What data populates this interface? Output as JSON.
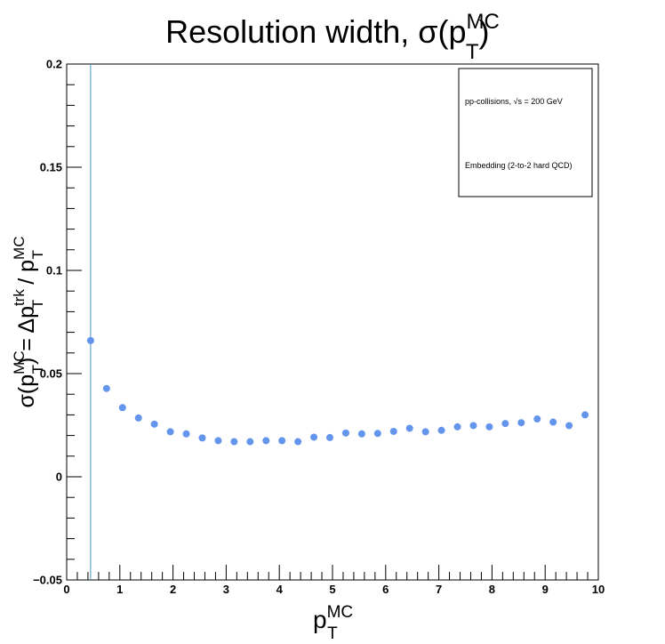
{
  "chart_data": {
    "type": "scatter",
    "title": {
      "base": "Resolution width, σ(p",
      "sub": "T",
      "sup": "MC",
      "tail": ")"
    },
    "xlabel": {
      "base": "p",
      "sub": "T",
      "sup": "MC"
    },
    "ylabel": {
      "p1": "σ(p",
      "p1_sub": "T",
      "p1_sup": "MC",
      "p2": ") = Δp",
      "p2_sub": "T",
      "p2_sup": "trk",
      "p3": " / p",
      "p3_sub": "T",
      "p3_sup": "MC"
    },
    "xlim": [
      0,
      10
    ],
    "ylim": [
      -0.05,
      0.2
    ],
    "x_ticks": [
      "0",
      "1",
      "2",
      "3",
      "4",
      "5",
      "6",
      "7",
      "8",
      "9",
      "10"
    ],
    "y_ticks": [
      "−0.05",
      "0",
      "0.05",
      "0.1",
      "0.15",
      "0.2"
    ],
    "y_tick_values": [
      -0.05,
      0,
      0.05,
      0.1,
      0.15,
      0.2
    ],
    "vertical_line_x": 0.45,
    "marker_color": "#6495ed",
    "line_color": "#4a90c2",
    "legend": {
      "placement": "top-right",
      "entries": [
        "pp-collisions, √s = 200 GeV",
        "Embedding (2-to-2 hard QCD)"
      ]
    },
    "series": [
      {
        "x": [
          0.45,
          0.75,
          1.05,
          1.35,
          1.65,
          1.95,
          2.25,
          2.55,
          2.85,
          3.15,
          3.45,
          3.75,
          4.05,
          4.35,
          4.65,
          4.95,
          5.25,
          5.55,
          5.85,
          6.15,
          6.45,
          6.75,
          7.05,
          7.35,
          7.65,
          7.95,
          8.25,
          8.55,
          8.85,
          9.15,
          9.45,
          9.75
        ],
        "y": [
          0.066,
          0.0428,
          0.0335,
          0.0285,
          0.0255,
          0.0218,
          0.0208,
          0.0188,
          0.0175,
          0.017,
          0.017,
          0.0175,
          0.0175,
          0.017,
          0.0192,
          0.019,
          0.0212,
          0.0208,
          0.021,
          0.022,
          0.0235,
          0.0218,
          0.0225,
          0.0242,
          0.0248,
          0.0242,
          0.0258,
          0.0262,
          0.028,
          0.0265,
          0.0248,
          0.03
        ]
      }
    ]
  }
}
